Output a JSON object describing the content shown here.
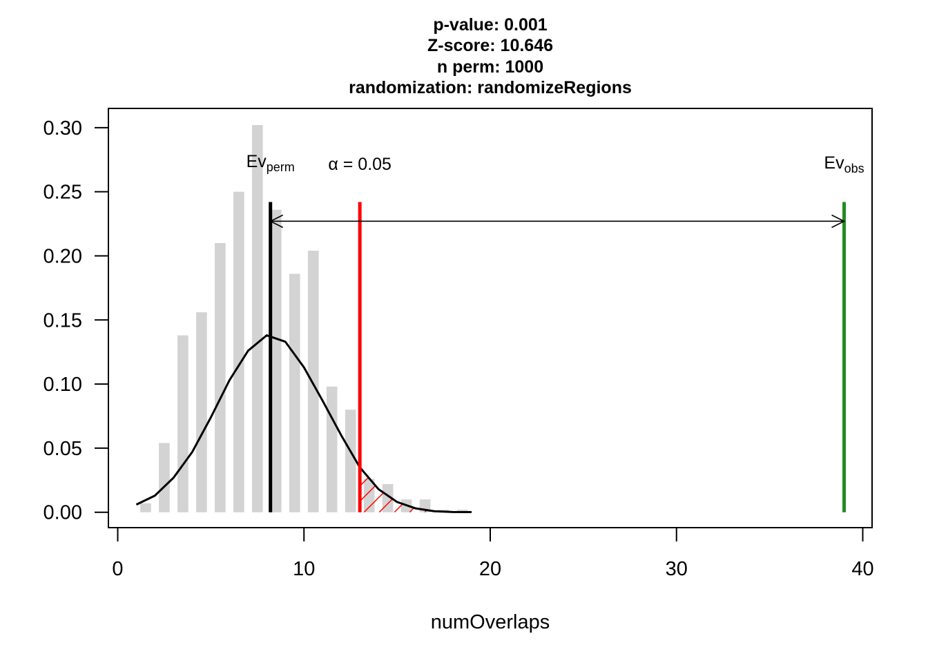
{
  "chart_data": {
    "type": "bar",
    "title_lines": [
      "p-value:  0.001",
      "Z-score:  10.646",
      "n perm:  1000",
      "randomization:  randomizeRegions"
    ],
    "xlabel": "numOverlaps",
    "ylabel": "",
    "xlim": [
      -0.5,
      40.5
    ],
    "ylim": [
      -0.012,
      0.315
    ],
    "x_ticks": [
      0,
      10,
      20,
      30,
      40
    ],
    "y_ticks": [
      0.0,
      0.05,
      0.1,
      0.15,
      0.2,
      0.25,
      0.3
    ],
    "y_tick_labels": [
      "0.00",
      "0.05",
      "0.10",
      "0.15",
      "0.20",
      "0.25",
      "0.30"
    ],
    "grid": false,
    "histogram": {
      "color": "#d3d3d3",
      "bins": [
        {
          "x": 1.5,
          "value": 0.007
        },
        {
          "x": 2.5,
          "value": 0.054
        },
        {
          "x": 3.5,
          "value": 0.138
        },
        {
          "x": 4.5,
          "value": 0.156
        },
        {
          "x": 5.5,
          "value": 0.21
        },
        {
          "x": 6.5,
          "value": 0.25
        },
        {
          "x": 7.5,
          "value": 0.302
        },
        {
          "x": 8.5,
          "value": 0.236
        },
        {
          "x": 9.5,
          "value": 0.186
        },
        {
          "x": 10.5,
          "value": 0.204
        },
        {
          "x": 11.5,
          "value": 0.098
        },
        {
          "x": 12.5,
          "value": 0.08
        },
        {
          "x": 13.5,
          "value": 0.026
        },
        {
          "x": 14.5,
          "value": 0.022
        },
        {
          "x": 15.5,
          "value": 0.01
        },
        {
          "x": 16.5,
          "value": 0.01
        },
        {
          "x": 17.5,
          "value": 0.002
        },
        {
          "x": 18.5,
          "value": 0.002
        }
      ]
    },
    "density_curve": {
      "color": "#000000",
      "x": [
        1,
        2,
        3,
        4,
        5,
        6,
        7,
        8,
        9,
        10,
        11,
        12,
        13,
        14,
        15,
        16,
        17,
        18,
        19
      ],
      "y": [
        0.006,
        0.013,
        0.027,
        0.047,
        0.074,
        0.103,
        0.126,
        0.138,
        0.133,
        0.113,
        0.087,
        0.06,
        0.035,
        0.018,
        0.008,
        0.003,
        0.0008,
        0.0002,
        0.0001
      ]
    },
    "lines": {
      "ev_perm": {
        "x": 8.2,
        "y_top": 0.242,
        "color": "#000000",
        "label_main": "Ev",
        "label_sub": "perm"
      },
      "alpha": {
        "x": 13.0,
        "y_top": 0.242,
        "color": "#ff0000",
        "label": "α = 0.05"
      },
      "ev_obs": {
        "x": 39.0,
        "y_top": 0.242,
        "color": "#228b22",
        "label_main": "Ev",
        "label_sub": "obs"
      }
    },
    "arrow": {
      "x_from": 8.2,
      "x_to": 39.0,
      "y": 0.227,
      "color": "#000000"
    },
    "hatched_region": {
      "x_from": 13.0,
      "color": "#ff0000"
    }
  }
}
